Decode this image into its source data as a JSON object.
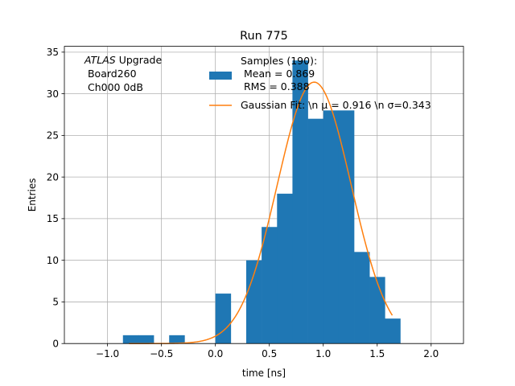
{
  "chart_data": {
    "type": "bar",
    "title": "Run 775",
    "xlabel": "time [ns]",
    "ylabel": "Entries",
    "xlim": [
      -1.4,
      2.3
    ],
    "ylim": [
      0,
      35.7
    ],
    "grid": true,
    "x_ticks": [
      -1.0,
      -0.5,
      0.0,
      0.5,
      1.0,
      1.5,
      2.0
    ],
    "x_tick_labels": [
      "−1.0",
      "−0.5",
      "0.0",
      "0.5",
      "1.0",
      "1.5",
      "2.0"
    ],
    "y_ticks": [
      0,
      5,
      10,
      15,
      20,
      25,
      30,
      35
    ],
    "y_tick_labels": [
      "0",
      "5",
      "10",
      "15",
      "20",
      "25",
      "30",
      "35"
    ],
    "histogram": {
      "name": "Samples (190):\n Mean = 0.869\n RMS = 0.388",
      "color": "#1f77b4",
      "bin_width": 0.1429,
      "bins": [
        {
          "x0": -0.8571,
          "count": 1
        },
        {
          "x0": -0.7143,
          "count": 1
        },
        {
          "x0": -0.4286,
          "count": 1
        },
        {
          "x0": -0.0,
          "count": 6
        },
        {
          "x0": 0.2857,
          "count": 10
        },
        {
          "x0": 0.4286,
          "count": 14
        },
        {
          "x0": 0.5714,
          "count": 18
        },
        {
          "x0": 0.7143,
          "count": 34
        },
        {
          "x0": 0.8571,
          "count": 27
        },
        {
          "x0": 1.0,
          "count": 28
        },
        {
          "x0": 1.1429,
          "count": 28
        },
        {
          "x0": 1.2857,
          "count": 11
        },
        {
          "x0": 1.4286,
          "count": 8
        },
        {
          "x0": 1.5714,
          "count": 3
        }
      ]
    },
    "fit": {
      "name": "Gaussian Fit: \\n $\\mu$ = 0.916 \\n $\\sigma$=0.343",
      "legend_display": "Gaussian Fit: \\n μ = 0.916 \\n σ=0.343",
      "color": "#ff7f0e",
      "mu": 0.916,
      "sigma": 0.343,
      "amplitude": 31.4,
      "x_range": [
        -0.8,
        1.64
      ]
    },
    "legend": [
      "Samples (190):\n Mean = 0.869\n RMS = 0.388",
      "Gaussian Fit: \\n μ = 0.916 \\n σ=0.343"
    ],
    "legend_placement": "top-right",
    "annotation": {
      "italic": "ATLAS",
      "rest": " Upgrade",
      "line2": " Board260",
      "line3": " Ch000 0dB"
    }
  }
}
